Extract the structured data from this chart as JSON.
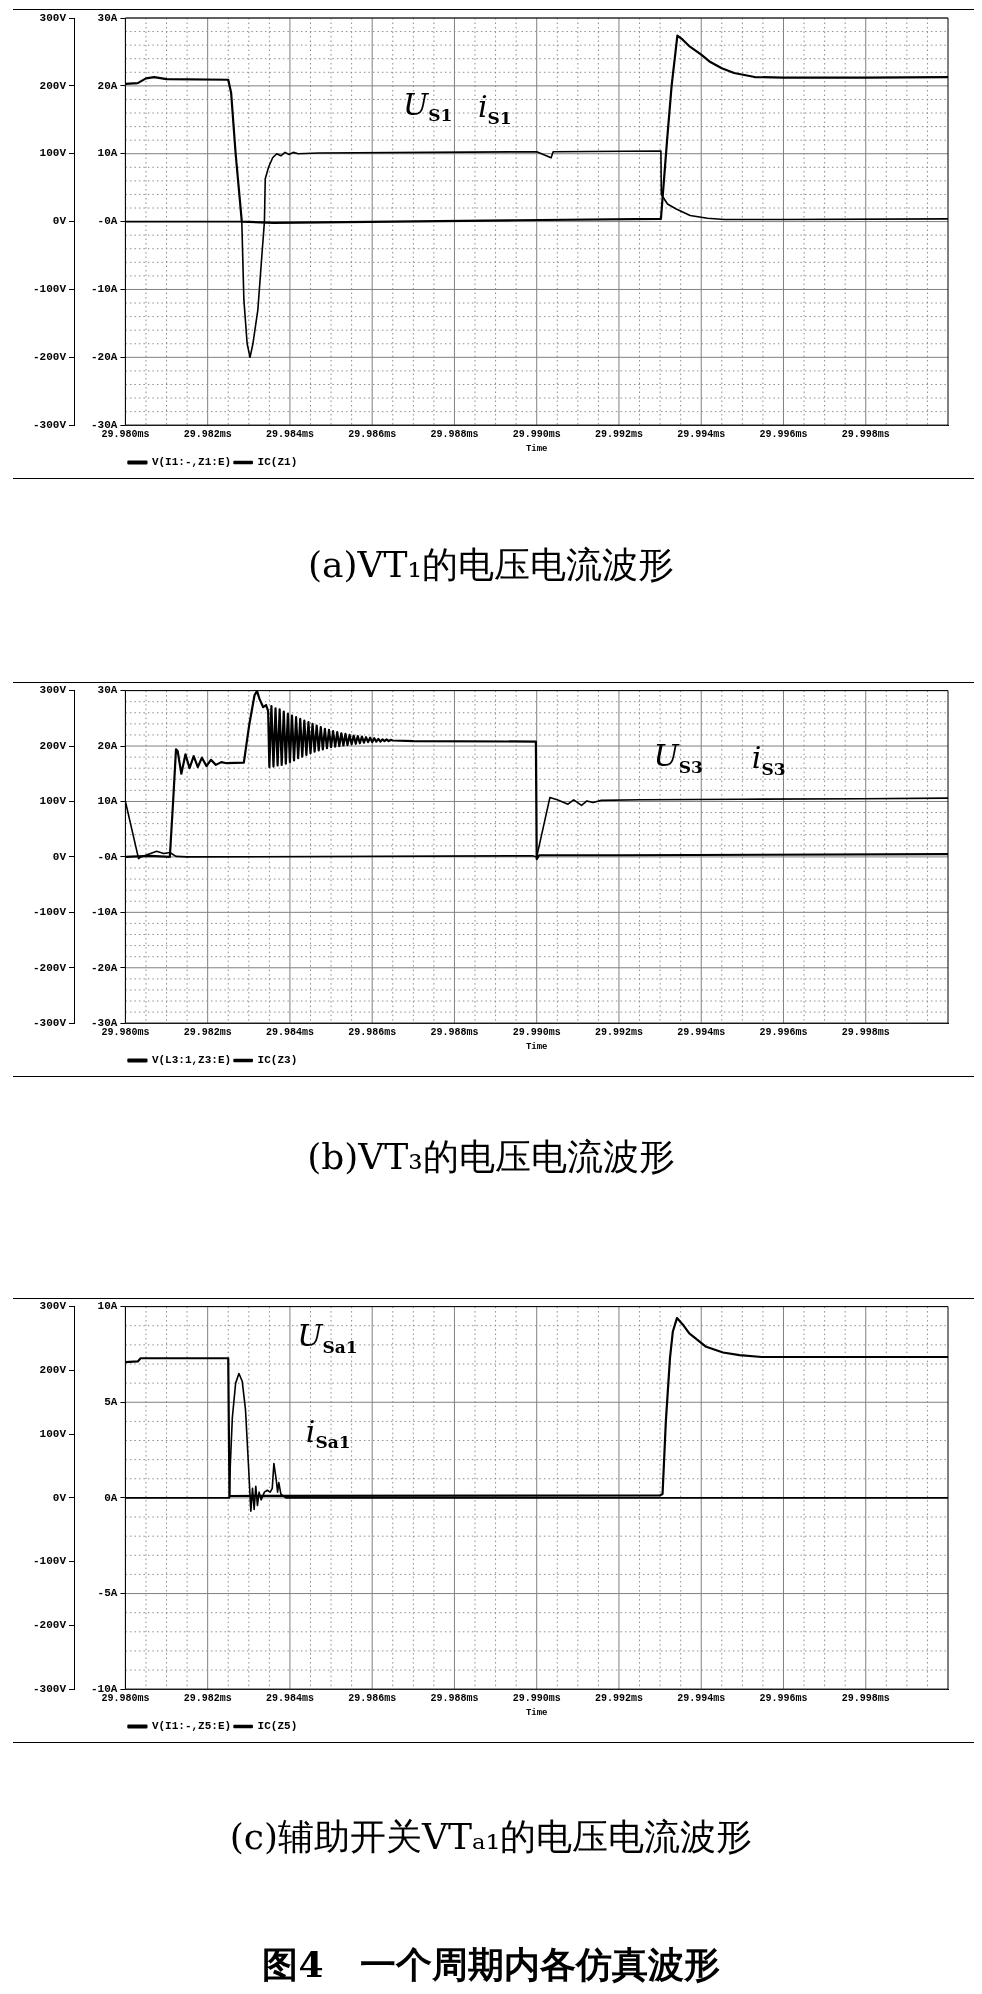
{
  "chart_data": [
    {
      "type": "line",
      "title": "(a)VT₁的电压电流波形",
      "xlabel": "Time",
      "xlim": [
        29.98,
        30.0
      ],
      "xticks": [
        {
          "value": 29.98,
          "label": "29.980ms"
        },
        {
          "value": 29.9805,
          "label": null
        },
        {
          "value": 29.981,
          "label": null
        },
        {
          "value": 29.9815,
          "label": null
        },
        {
          "value": 29.982,
          "label": "29.982ms"
        },
        {
          "value": 29.9825,
          "label": null
        },
        {
          "value": 29.983,
          "label": null
        },
        {
          "value": 29.9835,
          "label": null
        },
        {
          "value": 29.984,
          "label": "29.984ms"
        },
        {
          "value": 29.9845,
          "label": null
        },
        {
          "value": 29.985,
          "label": null
        },
        {
          "value": 29.9855,
          "label": null
        },
        {
          "value": 29.986,
          "label": "29.986ms"
        },
        {
          "value": 29.9865,
          "label": null
        },
        {
          "value": 29.987,
          "label": null
        },
        {
          "value": 29.9875,
          "label": null
        },
        {
          "value": 29.988,
          "label": "29.988ms"
        },
        {
          "value": 29.9885,
          "label": null
        },
        {
          "value": 29.989,
          "label": null
        },
        {
          "value": 29.9895,
          "label": null
        },
        {
          "value": 29.99,
          "label": "29.990ms"
        },
        {
          "value": 29.9905,
          "label": null
        },
        {
          "value": 29.991,
          "label": null
        },
        {
          "value": 29.9915,
          "label": null
        },
        {
          "value": 29.992,
          "label": "29.992ms"
        },
        {
          "value": 29.9925,
          "label": null
        },
        {
          "value": 29.993,
          "label": null
        },
        {
          "value": 29.9935,
          "label": null
        },
        {
          "value": 29.994,
          "label": "29.994ms"
        },
        {
          "value": 29.9945,
          "label": null
        },
        {
          "value": 29.995,
          "label": null
        },
        {
          "value": 29.9955,
          "label": null
        },
        {
          "value": 29.996,
          "label": "29.996ms"
        },
        {
          "value": 29.9965,
          "label": null
        },
        {
          "value": 29.997,
          "label": null
        },
        {
          "value": 29.9975,
          "label": null
        },
        {
          "value": 29.998,
          "label": "29.998ms"
        },
        {
          "value": 29.9985,
          "label": null
        },
        {
          "value": 29.999,
          "label": null
        },
        {
          "value": 29.9995,
          "label": null
        }
      ],
      "ylim": [
        -30,
        30
      ],
      "yticks": [
        {
          "value": -30,
          "label": "-30A"
        },
        {
          "value": -28,
          "label": null
        },
        {
          "value": -26,
          "label": null
        },
        {
          "value": -24,
          "label": null
        },
        {
          "value": -22,
          "label": null
        },
        {
          "value": -20,
          "label": "-20A"
        },
        {
          "value": -18,
          "label": null
        },
        {
          "value": -16,
          "label": null
        },
        {
          "value": -14,
          "label": null
        },
        {
          "value": -12,
          "label": null
        },
        {
          "value": -10,
          "label": "-10A"
        },
        {
          "value": -8,
          "label": null
        },
        {
          "value": -6,
          "label": null
        },
        {
          "value": -4,
          "label": null
        },
        {
          "value": -2,
          "label": null
        },
        {
          "value": 0,
          "label": "-0A"
        },
        {
          "value": 2,
          "label": null
        },
        {
          "value": 4,
          "label": null
        },
        {
          "value": 6,
          "label": null
        },
        {
          "value": 8,
          "label": null
        },
        {
          "value": 10,
          "label": "10A"
        },
        {
          "value": 12,
          "label": null
        },
        {
          "value": 14,
          "label": null
        },
        {
          "value": 16,
          "label": null
        },
        {
          "value": 18,
          "label": null
        },
        {
          "value": 20,
          "label": "20A"
        },
        {
          "value": 22,
          "label": null
        },
        {
          "value": 24,
          "label": null
        },
        {
          "value": 26,
          "label": null
        },
        {
          "value": 28,
          "label": null
        },
        {
          "value": 30,
          "label": "30A"
        }
      ],
      "y2lim": [
        -300,
        300
      ],
      "y2ticks": [
        {
          "value": -300,
          "label": "-300V"
        },
        {
          "value": -200,
          "label": "-200V"
        },
        {
          "value": -100,
          "label": "-100V"
        },
        {
          "value": 0,
          "label": "0V"
        },
        {
          "value": 100,
          "label": "100V"
        },
        {
          "value": 200,
          "label": "200V"
        },
        {
          "value": 300,
          "label": "300V"
        }
      ],
      "grid": true,
      "legend": "bottom left",
      "series": [
        {
          "name": "V(I1:-,Z1:E)",
          "color": "#000000",
          "axis": "y2",
          "x": [
            29.98,
            29.9803,
            29.9805,
            29.9807,
            29.981,
            29.9825,
            29.98257,
            29.98268,
            29.98277,
            29.98283,
            29.9836,
            29.9865,
            29.9895,
            29.99302,
            29.99317,
            29.99328,
            29.99342,
            29.99355,
            29.9937,
            29.994,
            29.9942,
            29.9945,
            29.9948,
            29.9953,
            29.996,
            29.998,
            30.0
          ],
          "values": [
            203,
            204,
            211,
            213,
            210,
            209,
            190,
            100,
            40,
            0,
            -2,
            0,
            2,
            4,
            120,
            200,
            274,
            268,
            259,
            246,
            236,
            226,
            219,
            213,
            212,
            212,
            213
          ]
        },
        {
          "name": "IC(Z1)",
          "color": "#000000",
          "x": [
            29.98,
            29.98283,
            29.98288,
            29.98296,
            29.98303,
            29.9831,
            29.98322,
            29.98333,
            29.98338,
            29.9834,
            29.98348,
            29.98358,
            29.98368,
            29.98378,
            29.98388,
            29.98398,
            29.98408,
            29.9842,
            29.9847,
            29.9874,
            29.99,
            29.99035,
            29.9904,
            29.99302,
            29.99303,
            29.99318,
            29.99338,
            29.99373,
            29.99415,
            29.99457,
            29.996,
            30.0
          ],
          "values": [
            0,
            0,
            -11.5,
            -18,
            -20,
            -18,
            -13,
            -4,
            0,
            6.3,
            8,
            9.4,
            10,
            9.7,
            10.2,
            9.9,
            10.2,
            10,
            10.1,
            10.2,
            10.3,
            9.4,
            10.3,
            10.4,
            4,
            2.6,
            1.9,
            0.9,
            0.5,
            0.3,
            0.3,
            0.4
          ]
        }
      ],
      "annotations": [
        "U$_{S1}$",
        "i$_{S1}$"
      ]
    },
    {
      "type": "line",
      "title": "(b)VT₃的电压电流波形",
      "xlabel": "Time",
      "xlim": [
        29.98,
        30.0
      ],
      "xticks": [
        {
          "value": 29.98,
          "label": "29.980ms"
        },
        {
          "value": 29.9805,
          "label": null
        },
        {
          "value": 29.981,
          "label": null
        },
        {
          "value": 29.9815,
          "label": null
        },
        {
          "value": 29.982,
          "label": "29.982ms"
        },
        {
          "value": 29.9825,
          "label": null
        },
        {
          "value": 29.983,
          "label": null
        },
        {
          "value": 29.9835,
          "label": null
        },
        {
          "value": 29.984,
          "label": "29.984ms"
        },
        {
          "value": 29.9845,
          "label": null
        },
        {
          "value": 29.985,
          "label": null
        },
        {
          "value": 29.9855,
          "label": null
        },
        {
          "value": 29.986,
          "label": "29.986ms"
        },
        {
          "value": 29.9865,
          "label": null
        },
        {
          "value": 29.987,
          "label": null
        },
        {
          "value": 29.9875,
          "label": null
        },
        {
          "value": 29.988,
          "label": "29.988ms"
        },
        {
          "value": 29.9885,
          "label": null
        },
        {
          "value": 29.989,
          "label": null
        },
        {
          "value": 29.9895,
          "label": null
        },
        {
          "value": 29.99,
          "label": "29.990ms"
        },
        {
          "value": 29.9905,
          "label": null
        },
        {
          "value": 29.991,
          "label": null
        },
        {
          "value": 29.9915,
          "label": null
        },
        {
          "value": 29.992,
          "label": "29.992ms"
        },
        {
          "value": 29.9925,
          "label": null
        },
        {
          "value": 29.993,
          "label": null
        },
        {
          "value": 29.9935,
          "label": null
        },
        {
          "value": 29.994,
          "label": "29.994ms"
        },
        {
          "value": 29.9945,
          "label": null
        },
        {
          "value": 29.995,
          "label": null
        },
        {
          "value": 29.9955,
          "label": null
        },
        {
          "value": 29.996,
          "label": "29.996ms"
        },
        {
          "value": 29.9965,
          "label": null
        },
        {
          "value": 29.997,
          "label": null
        },
        {
          "value": 29.9975,
          "label": null
        },
        {
          "value": 29.998,
          "label": "29.998ms"
        },
        {
          "value": 29.9985,
          "label": null
        },
        {
          "value": 29.999,
          "label": null
        },
        {
          "value": 29.9995,
          "label": null
        }
      ],
      "ylim": [
        -30,
        30
      ],
      "yticks": [
        {
          "value": -30,
          "label": "-30A"
        },
        {
          "value": -28,
          "label": null
        },
        {
          "value": -26,
          "label": null
        },
        {
          "value": -24,
          "label": null
        },
        {
          "value": -22,
          "label": null
        },
        {
          "value": -20,
          "label": "-20A"
        },
        {
          "value": -18,
          "label": null
        },
        {
          "value": -16,
          "label": null
        },
        {
          "value": -14,
          "label": null
        },
        {
          "value": -12,
          "label": null
        },
        {
          "value": -10,
          "label": "-10A"
        },
        {
          "value": -8,
          "label": null
        },
        {
          "value": -6,
          "label": null
        },
        {
          "value": -4,
          "label": null
        },
        {
          "value": -2,
          "label": null
        },
        {
          "value": 0,
          "label": "-0A"
        },
        {
          "value": 2,
          "label": null
        },
        {
          "value": 4,
          "label": null
        },
        {
          "value": 6,
          "label": null
        },
        {
          "value": 8,
          "label": null
        },
        {
          "value": 10,
          "label": "10A"
        },
        {
          "value": 12,
          "label": null
        },
        {
          "value": 14,
          "label": null
        },
        {
          "value": 16,
          "label": null
        },
        {
          "value": 18,
          "label": null
        },
        {
          "value": 20,
          "label": "20A"
        },
        {
          "value": 22,
          "label": null
        },
        {
          "value": 24,
          "label": null
        },
        {
          "value": 26,
          "label": null
        },
        {
          "value": 28,
          "label": null
        },
        {
          "value": 30,
          "label": "30A"
        }
      ],
      "y2lim": [
        -300,
        300
      ],
      "y2ticks": [
        {
          "value": -300,
          "label": "-300V"
        },
        {
          "value": -200,
          "label": "-200V"
        },
        {
          "value": -100,
          "label": "-100V"
        },
        {
          "value": 0,
          "label": "0V"
        },
        {
          "value": 100,
          "label": "100V"
        },
        {
          "value": 200,
          "label": "200V"
        },
        {
          "value": 300,
          "label": "300V"
        }
      ],
      "grid": true,
      "legend": "bottom left",
      "series": [
        {
          "name": "V(L3:1,Z3:E)",
          "color": "#000000",
          "axis": "y2",
          "x": [
            29.98,
            29.9806,
            29.98108,
            29.98116,
            29.98123,
            29.98127,
            29.98136,
            29.98146,
            29.98156,
            29.98166,
            29.98176,
            29.98186,
            29.98197,
            29.98208,
            29.9822,
            29.98233,
            29.98246,
            29.98288,
            29.98301,
            29.98314,
            29.9832,
            29.98326,
            29.98335,
            29.98342,
            29.98347,
            29.9835,
            29.98355,
            29.9836,
            29.98365,
            29.9837,
            29.98375,
            29.9838,
            29.98385,
            29.9839,
            29.98395,
            29.984,
            29.98405,
            29.9841,
            29.98415,
            29.9842,
            29.98425,
            29.9843,
            29.98435,
            29.9844,
            29.98445,
            29.9845,
            29.98455,
            29.9846,
            29.98465,
            29.9847,
            29.98475,
            29.9848,
            29.98485,
            29.9849,
            29.98495,
            29.985,
            29.98505,
            29.9851,
            29.98515,
            29.9852,
            29.98525,
            29.9853,
            29.98535,
            29.9854,
            29.98545,
            29.9855,
            29.98555,
            29.9856,
            29.98565,
            29.9857,
            29.98575,
            29.9858,
            29.98585,
            29.9859,
            29.98595,
            29.986,
            29.98605,
            29.9861,
            29.98615,
            29.9862,
            29.98625,
            29.9863,
            29.98635,
            29.9864,
            29.98645,
            29.9865,
            29.987,
            29.98998,
            29.99,
            29.99006,
            29.992,
            30.0
          ],
          "values": [
            0,
            2,
            0,
            100,
            194,
            191,
            150,
            185,
            160,
            182,
            162,
            179,
            164,
            175,
            166,
            171,
            169,
            170,
            238,
            292,
            299,
            285,
            270,
            274,
            263,
            162,
            272,
            163,
            268,
            165,
            266,
            166,
            262,
            168,
            258,
            171,
            255,
            174,
            252,
            178,
            249,
            181,
            246,
            184,
            243,
            187,
            240,
            190,
            237,
            192,
            234,
            194,
            231,
            196,
            229,
            198,
            227,
            199,
            225,
            200,
            223,
            201,
            222,
            202,
            220,
            203,
            219,
            204,
            218,
            205,
            217,
            206,
            216,
            207,
            215,
            207,
            214,
            208,
            213,
            208,
            212,
            209,
            212,
            209,
            211,
            210,
            209,
            208,
            -4,
            3,
            3,
            5
          ]
        },
        {
          "name": "IC(Z3)",
          "color": "#000000",
          "x": [
            29.98,
            29.98032,
            29.98038,
            29.98076,
            29.98093,
            29.98108,
            29.98123,
            29.9815,
            29.9899,
            29.99,
            29.99032,
            29.9905,
            29.99076,
            29.9909,
            29.99109,
            29.99122,
            29.99137,
            29.99157,
            29.9925,
            29.995,
            29.9979,
            30.0
          ],
          "values": [
            10,
            -0.3,
            0,
            1,
            0.6,
            0.8,
            0.1,
            0,
            0.2,
            0,
            10.7,
            10.3,
            9.5,
            10.3,
            9.3,
            10.1,
            9.8,
            10.2,
            10.3,
            10.4,
            10.5,
            10.6
          ]
        }
      ],
      "annotations": [
        "U$_{S3}$",
        "i$_{S3}$"
      ]
    },
    {
      "type": "line",
      "title": "(c)辅助开关VTₐ₁的电压电流波形",
      "xlabel": "Time",
      "xlim": [
        29.98,
        30.0
      ],
      "xticks": [
        {
          "value": 29.98,
          "label": "29.980ms"
        },
        {
          "value": 29.9805,
          "label": null
        },
        {
          "value": 29.981,
          "label": null
        },
        {
          "value": 29.9815,
          "label": null
        },
        {
          "value": 29.982,
          "label": "29.982ms"
        },
        {
          "value": 29.9825,
          "label": null
        },
        {
          "value": 29.983,
          "label": null
        },
        {
          "value": 29.9835,
          "label": null
        },
        {
          "value": 29.984,
          "label": "29.984ms"
        },
        {
          "value": 29.9845,
          "label": null
        },
        {
          "value": 29.985,
          "label": null
        },
        {
          "value": 29.9855,
          "label": null
        },
        {
          "value": 29.986,
          "label": "29.986ms"
        },
        {
          "value": 29.9865,
          "label": null
        },
        {
          "value": 29.987,
          "label": null
        },
        {
          "value": 29.9875,
          "label": null
        },
        {
          "value": 29.988,
          "label": "29.988ms"
        },
        {
          "value": 29.9885,
          "label": null
        },
        {
          "value": 29.989,
          "label": null
        },
        {
          "value": 29.9895,
          "label": null
        },
        {
          "value": 29.99,
          "label": "29.990ms"
        },
        {
          "value": 29.9905,
          "label": null
        },
        {
          "value": 29.991,
          "label": null
        },
        {
          "value": 29.9915,
          "label": null
        },
        {
          "value": 29.992,
          "label": "29.992ms"
        },
        {
          "value": 29.9925,
          "label": null
        },
        {
          "value": 29.993,
          "label": null
        },
        {
          "value": 29.9935,
          "label": null
        },
        {
          "value": 29.994,
          "label": "29.994ms"
        },
        {
          "value": 29.9945,
          "label": null
        },
        {
          "value": 29.995,
          "label": null
        },
        {
          "value": 29.9955,
          "label": null
        },
        {
          "value": 29.996,
          "label": "29.996ms"
        },
        {
          "value": 29.9965,
          "label": null
        },
        {
          "value": 29.997,
          "label": null
        },
        {
          "value": 29.9975,
          "label": null
        },
        {
          "value": 29.998,
          "label": "29.998ms"
        },
        {
          "value": 29.9985,
          "label": null
        },
        {
          "value": 29.999,
          "label": null
        },
        {
          "value": 29.9995,
          "label": null
        }
      ],
      "ylim": [
        -10,
        10
      ],
      "yticks": [
        {
          "value": -10,
          "label": "-10A"
        },
        {
          "value": -9,
          "label": null
        },
        {
          "value": -8,
          "label": null
        },
        {
          "value": -7,
          "label": null
        },
        {
          "value": -6,
          "label": null
        },
        {
          "value": -5,
          "label": "-5A"
        },
        {
          "value": -4,
          "label": null
        },
        {
          "value": -3,
          "label": null
        },
        {
          "value": -2,
          "label": null
        },
        {
          "value": -1,
          "label": null
        },
        {
          "value": 0,
          "label": "0A"
        },
        {
          "value": 1,
          "label": null
        },
        {
          "value": 2,
          "label": null
        },
        {
          "value": 3,
          "label": null
        },
        {
          "value": 4,
          "label": null
        },
        {
          "value": 5,
          "label": "5A"
        },
        {
          "value": 6,
          "label": null
        },
        {
          "value": 7,
          "label": null
        },
        {
          "value": 8,
          "label": null
        },
        {
          "value": 9,
          "label": null
        },
        {
          "value": 10,
          "label": "10A"
        }
      ],
      "y2lim": [
        -300,
        300
      ],
      "y2ticks": [
        {
          "value": -300,
          "label": "-300V"
        },
        {
          "value": -200,
          "label": "-200V"
        },
        {
          "value": -100,
          "label": "-100V"
        },
        {
          "value": 0,
          "label": "0V"
        },
        {
          "value": 100,
          "label": "100V"
        },
        {
          "value": 200,
          "label": "200V"
        },
        {
          "value": 300,
          "label": "300V"
        }
      ],
      "grid": true,
      "legend": "bottom left",
      "series": [
        {
          "name": "V(I1:-,Z5:E)",
          "color": "#000000",
          "axis": "y2",
          "x": [
            29.98,
            29.9803,
            29.98037,
            29.9825,
            29.98253,
            29.993,
            29.99306,
            29.99314,
            29.99324,
            29.99331,
            29.99341,
            29.99355,
            29.99371,
            29.99412,
            29.99453,
            29.99493,
            29.99547,
            30.0
          ],
          "values": [
            213,
            214,
            219,
            219,
            3,
            4,
            6,
            120,
            219,
            261,
            282,
            272,
            258,
            237,
            228,
            224,
            221,
            221
          ]
        },
        {
          "name": "IC(Z5)",
          "color": "#000000",
          "x": [
            29.98,
            29.98253,
            29.98255,
            29.9826,
            29.98268,
            29.98276,
            29.98284,
            29.98292,
            29.98299,
            29.98303,
            29.98305,
            29.98309,
            29.98313,
            29.98317,
            29.98321,
            29.98325,
            29.9833,
            29.98338,
            29.98345,
            29.98352,
            29.98357,
            29.98361,
            29.98367,
            29.9837,
            29.98373,
            29.98378,
            29.9839,
            30.0
          ],
          "values": [
            0,
            0,
            1.7,
            4.2,
            6,
            6.5,
            6.1,
            4.6,
            1.8,
            0.1,
            -0.7,
            0.5,
            -0.6,
            0.6,
            -0.4,
            0.3,
            -0.1,
            0.3,
            0.4,
            0.3,
            0.5,
            1.8,
            0.9,
            0.3,
            0.8,
            0.2,
            0,
            0
          ]
        }
      ],
      "annotations": [
        "U$_{Sa1}$",
        "i$_{Sa1}$",
        "图4　一个周期内各仿真波形"
      ]
    }
  ]
}
